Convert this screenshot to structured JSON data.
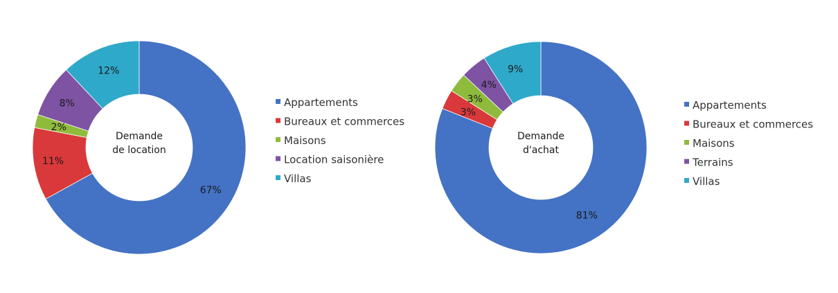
{
  "colors": {
    "appartements": "#4472c4",
    "bureaux": "#d9393a",
    "maisons": "#8fbb3d",
    "violet": "#7e53a3",
    "villas": "#2fa9c9"
  },
  "chart_data": [
    {
      "type": "pie",
      "variant": "doughnut",
      "center_label": [
        "Demande",
        "de location"
      ],
      "categories": [
        "Appartements",
        "Bureaux et commerces",
        "Maisons",
        "Location saisonière",
        "Villas"
      ],
      "values": [
        67,
        11,
        2,
        8,
        12
      ],
      "data_labels": [
        "67%",
        "11%",
        "2%",
        "8%",
        "12%"
      ],
      "colors": [
        "#4472c4",
        "#d9393a",
        "#8fbb3d",
        "#7e53a3",
        "#2fa9c9"
      ],
      "legend": "right"
    },
    {
      "type": "pie",
      "variant": "doughnut",
      "center_label": [
        "Demande",
        "d'achat"
      ],
      "categories": [
        "Appartements",
        "Bureaux et commerces",
        "Maisons",
        "Terrains",
        "Villas"
      ],
      "values": [
        81,
        3,
        3,
        4,
        9
      ],
      "data_labels": [
        "81%",
        "3%",
        "3%",
        "4%",
        "9%"
      ],
      "colors": [
        "#4472c4",
        "#d9393a",
        "#8fbb3d",
        "#7e53a3",
        "#2fa9c9"
      ],
      "legend": "right"
    }
  ]
}
